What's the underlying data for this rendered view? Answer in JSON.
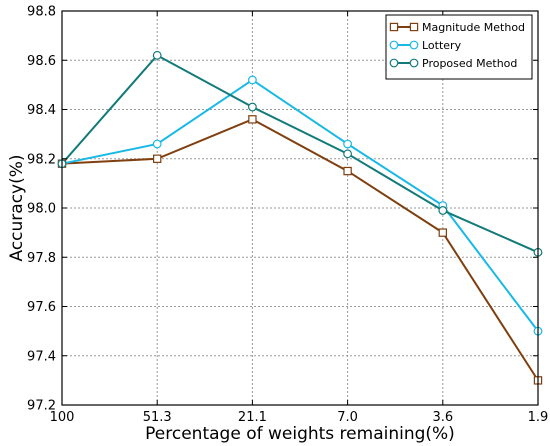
{
  "chart_data": {
    "type": "line",
    "title": "",
    "xlabel": "Percentage of weights remaining(%)",
    "ylabel": "Accuracy(%)",
    "categories": [
      "100",
      "51.3",
      "21.1",
      "7.0",
      "3.6",
      "1.9"
    ],
    "ylim": [
      97.2,
      98.8
    ],
    "yticks": [
      "97.2",
      "97.4",
      "97.6",
      "97.8",
      "98.0",
      "98.2",
      "98.4",
      "98.6",
      "98.8"
    ],
    "grid": true,
    "legend_position": "top-right",
    "series": [
      {
        "name": "Magnitude Method",
        "color": "#7f3f0f",
        "marker": "square",
        "values": [
          98.18,
          98.2,
          98.36,
          98.15,
          97.9,
          97.3
        ]
      },
      {
        "name": "Lottery",
        "color": "#18b9e6",
        "marker": "circle",
        "values": [
          98.18,
          98.26,
          98.52,
          98.26,
          98.01,
          97.5
        ]
      },
      {
        "name": "Proposed Method",
        "color": "#137a7a",
        "marker": "circle",
        "values": [
          98.18,
          98.62,
          98.41,
          98.22,
          97.99,
          97.82
        ]
      }
    ]
  }
}
